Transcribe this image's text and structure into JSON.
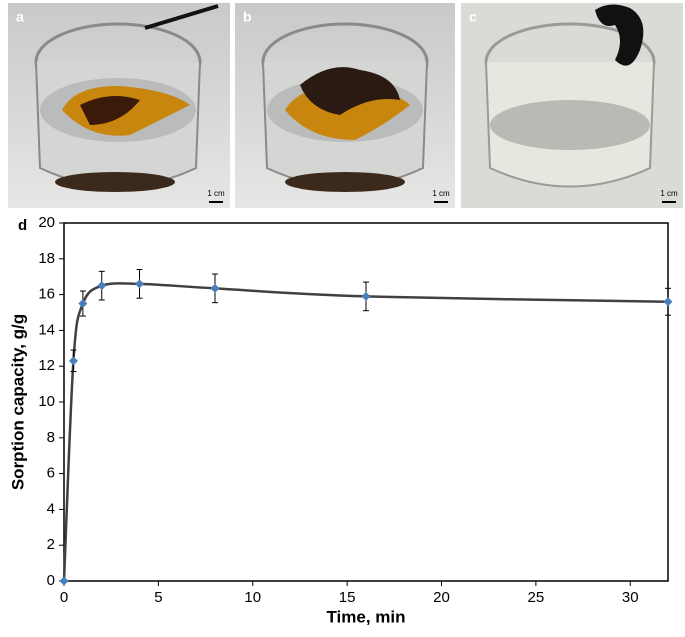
{
  "panels": [
    {
      "label": "a",
      "scale": "1 cm"
    },
    {
      "label": "b",
      "scale": "1 cm"
    },
    {
      "label": "c",
      "scale": "1 cm"
    }
  ],
  "chart_data": {
    "type": "line",
    "label": "d",
    "x_label": "Time, min",
    "y_label": "Sorption capacity, g/g",
    "x": [
      0,
      0.5,
      1,
      2,
      4,
      8,
      16,
      32
    ],
    "series": [
      {
        "color": "#4a7ebb",
        "values": [
          0,
          12.3,
          15.5,
          16.5,
          16.6,
          16.35,
          15.9,
          15.6
        ],
        "errors": [
          0,
          0.6,
          0.7,
          0.8,
          0.8,
          0.8,
          0.8,
          0.75
        ]
      }
    ],
    "curve_color": "#404040",
    "xlim": [
      0,
      32
    ],
    "xticks": [
      0,
      5,
      10,
      15,
      20,
      25,
      30
    ],
    "ylim": [
      0,
      20
    ],
    "yticks": [
      0,
      2,
      4,
      6,
      8,
      10,
      12,
      14,
      16,
      18,
      20
    ]
  }
}
